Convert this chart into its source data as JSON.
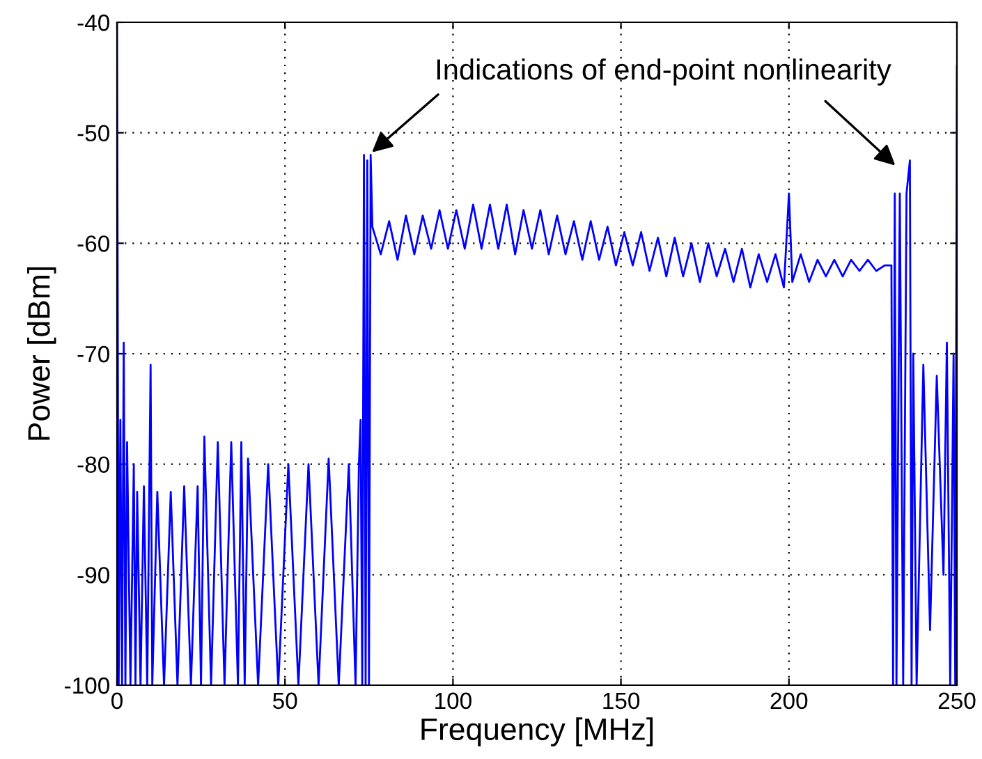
{
  "chart_data": {
    "type": "line",
    "xlabel": "Frequency [MHz]",
    "ylabel": "Power [dBm]",
    "annotations": [
      {
        "text": "Indications of end-point nonlinearity",
        "x": 75,
        "y": -52
      }
    ],
    "series": [
      {
        "color": "#0000ff",
        "x": [
          0,
          0.5,
          1,
          1.5,
          2,
          2.5,
          3,
          4,
          5,
          5.5,
          6,
          7,
          8,
          9,
          10,
          10.5,
          12,
          14,
          16,
          18,
          20,
          22,
          24,
          25,
          26,
          28,
          30,
          32,
          34,
          36,
          37,
          38,
          39,
          42,
          45,
          48,
          51,
          54,
          57,
          60,
          63,
          66,
          69,
          71,
          72,
          72.5,
          73,
          73.5,
          74,
          74.5,
          75,
          75.5,
          76,
          78.5,
          81,
          83.5,
          86,
          88.5,
          91,
          93.5,
          96,
          98.5,
          101,
          103.5,
          106,
          108.5,
          111,
          113.5,
          116,
          118.5,
          121,
          123.5,
          126,
          128.5,
          131,
          133.5,
          136,
          138.5,
          141,
          143.5,
          146,
          148.5,
          151,
          153.5,
          156,
          158.5,
          161,
          163.5,
          166,
          168.5,
          171,
          173.5,
          176,
          178.5,
          181,
          183.5,
          186,
          188.5,
          191,
          193.5,
          196,
          198.5,
          200,
          201,
          203.5,
          206,
          208.5,
          211,
          213.5,
          216,
          218.5,
          221,
          223.5,
          226,
          228.5,
          230.5,
          231,
          231.5,
          232,
          233,
          234,
          235,
          236,
          236.5,
          237,
          238,
          240,
          242,
          244,
          246,
          247,
          248,
          249,
          249.5,
          250
        ],
        "values": [
          -40,
          -100,
          -76,
          -100,
          -69,
          -100,
          -78,
          -100,
          -80,
          -100,
          -82.5,
          -100,
          -82,
          -100,
          -71,
          -100,
          -82.5,
          -100,
          -82.5,
          -100,
          -82,
          -100,
          -82,
          -100,
          -77.5,
          -100,
          -78,
          -100,
          -78,
          -100,
          -78,
          -100,
          -79.5,
          -100,
          -80,
          -100,
          -80,
          -100,
          -80,
          -100,
          -79.5,
          -100,
          -80,
          -100,
          -80,
          -76,
          -100,
          -52,
          -100,
          -52.5,
          -100,
          -52,
          -58.5,
          -61,
          -58,
          -61.5,
          -57.5,
          -61,
          -57.5,
          -60.5,
          -57,
          -60.5,
          -57,
          -60.5,
          -56.5,
          -60.5,
          -56.5,
          -60.5,
          -56.5,
          -61,
          -57,
          -60.5,
          -57,
          -61,
          -57.5,
          -61,
          -58,
          -61.5,
          -58,
          -61.5,
          -58.5,
          -62,
          -59,
          -62,
          -59,
          -62.5,
          -59.5,
          -63,
          -59.5,
          -63,
          -60,
          -63.5,
          -60,
          -63,
          -60.5,
          -63.5,
          -60.5,
          -64,
          -61,
          -63.5,
          -61,
          -64,
          -55.5,
          -63.5,
          -61,
          -63.5,
          -61.5,
          -63,
          -61.5,
          -63,
          -61.5,
          -62.5,
          -61.5,
          -62.5,
          -62,
          -62,
          -100,
          -55.5,
          -100,
          -55.5,
          -100,
          -55.5,
          -52.5,
          -100,
          -70,
          -100,
          -71,
          -95,
          -72,
          -90,
          -69,
          -100,
          -70,
          -100,
          -44
        ]
      }
    ],
    "xlim": [
      0,
      250
    ],
    "ylim": [
      -100,
      -40
    ],
    "xticks": [
      0,
      50,
      100,
      150,
      200,
      250
    ],
    "yticks": [
      -100,
      -90,
      -80,
      -70,
      -60,
      -50,
      -40
    ],
    "grid": true,
    "line_style": "solid",
    "marker": "none"
  }
}
